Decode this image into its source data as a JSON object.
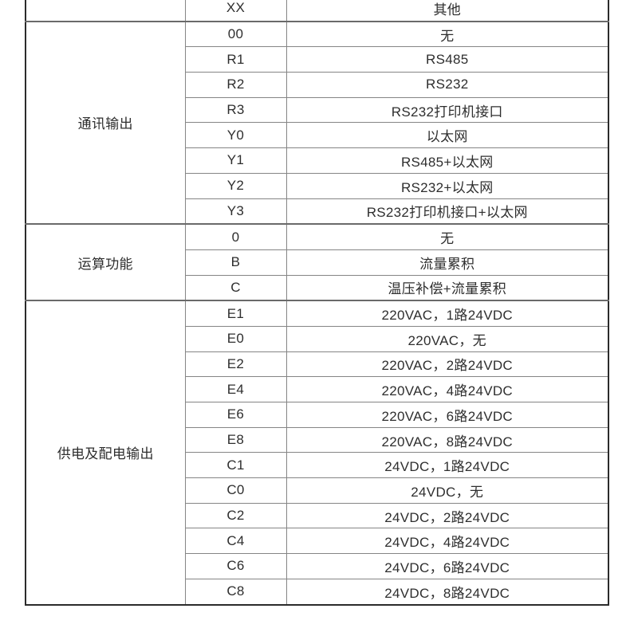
{
  "page": {
    "background": "#ffffff"
  },
  "colors": {
    "text": "#2e2e2e",
    "inner_border": "#858585",
    "section_border": "#6a6a6a",
    "outer_border": "#2b2b2b",
    "background": "#ffffff"
  },
  "table": {
    "name": "product-ordering-code-table",
    "columns": [
      "category",
      "code",
      "description"
    ],
    "leading_row": {
      "category": "",
      "code": "XX",
      "description": "其他"
    },
    "sections": [
      {
        "category": "通讯输出",
        "rows": [
          {
            "code": "00",
            "description": "无"
          },
          {
            "code": "R1",
            "description": "RS485"
          },
          {
            "code": "R2",
            "description": "RS232"
          },
          {
            "code": "R3",
            "description": "RS232打印机接口"
          },
          {
            "code": "Y0",
            "description": "以太网"
          },
          {
            "code": "Y1",
            "description": "RS485+以太网"
          },
          {
            "code": "Y2",
            "description": "RS232+以太网"
          },
          {
            "code": "Y3",
            "description": "RS232打印机接口+以太网"
          }
        ]
      },
      {
        "category": "运算功能",
        "rows": [
          {
            "code": "0",
            "description": "无"
          },
          {
            "code": "B",
            "description": "流量累积"
          },
          {
            "code": "C",
            "description": "温压补偿+流量累积"
          }
        ]
      },
      {
        "category": "供电及配电输出",
        "rows": [
          {
            "code": "E1",
            "description": "220VAC，1路24VDC"
          },
          {
            "code": "E0",
            "description": "220VAC，无"
          },
          {
            "code": "E2",
            "description": "220VAC，2路24VDC"
          },
          {
            "code": "E4",
            "description": "220VAC，4路24VDC"
          },
          {
            "code": "E6",
            "description": "220VAC，6路24VDC"
          },
          {
            "code": "E8",
            "description": "220VAC，8路24VDC"
          },
          {
            "code": "C1",
            "description": "24VDC，1路24VDC"
          },
          {
            "code": "C0",
            "description": "24VDC，无"
          },
          {
            "code": "C2",
            "description": "24VDC，2路24VDC"
          },
          {
            "code": "C4",
            "description": "24VDC，4路24VDC"
          },
          {
            "code": "C6",
            "description": "24VDC，6路24VDC"
          },
          {
            "code": "C8",
            "description": "24VDC，8路24VDC"
          }
        ]
      }
    ]
  }
}
